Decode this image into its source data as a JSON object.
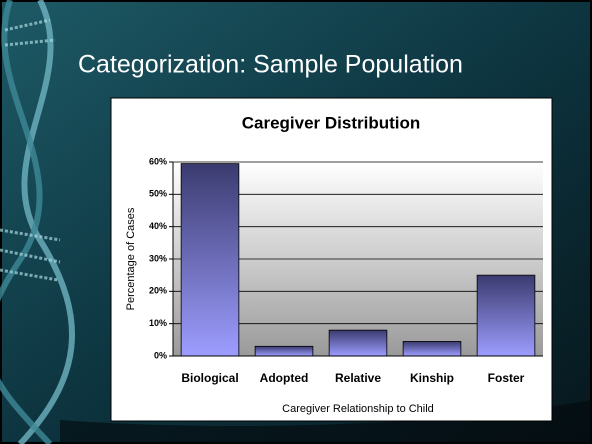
{
  "slide": {
    "title": "Categorization: Sample Population"
  },
  "chart_data": {
    "type": "bar",
    "title": "Caregiver Distribution",
    "x_label": "Caregiver Relationship to Child",
    "y_label": "Percentage of Cases",
    "categories": [
      "Biological",
      "Adopted",
      "Relative",
      "Kinship",
      "Foster"
    ],
    "values": [
      59.5,
      3,
      8,
      4.5,
      25
    ],
    "ylim": [
      0,
      60
    ],
    "yticks": [
      {
        "value": 0,
        "label": "0%"
      },
      {
        "value": 10,
        "label": "10%"
      },
      {
        "value": 20,
        "label": "20%"
      },
      {
        "value": 30,
        "label": "30%"
      },
      {
        "value": 40,
        "label": "40%"
      },
      {
        "value": 50,
        "label": "50%"
      },
      {
        "value": 60,
        "label": "60%"
      }
    ],
    "grid": true
  }
}
